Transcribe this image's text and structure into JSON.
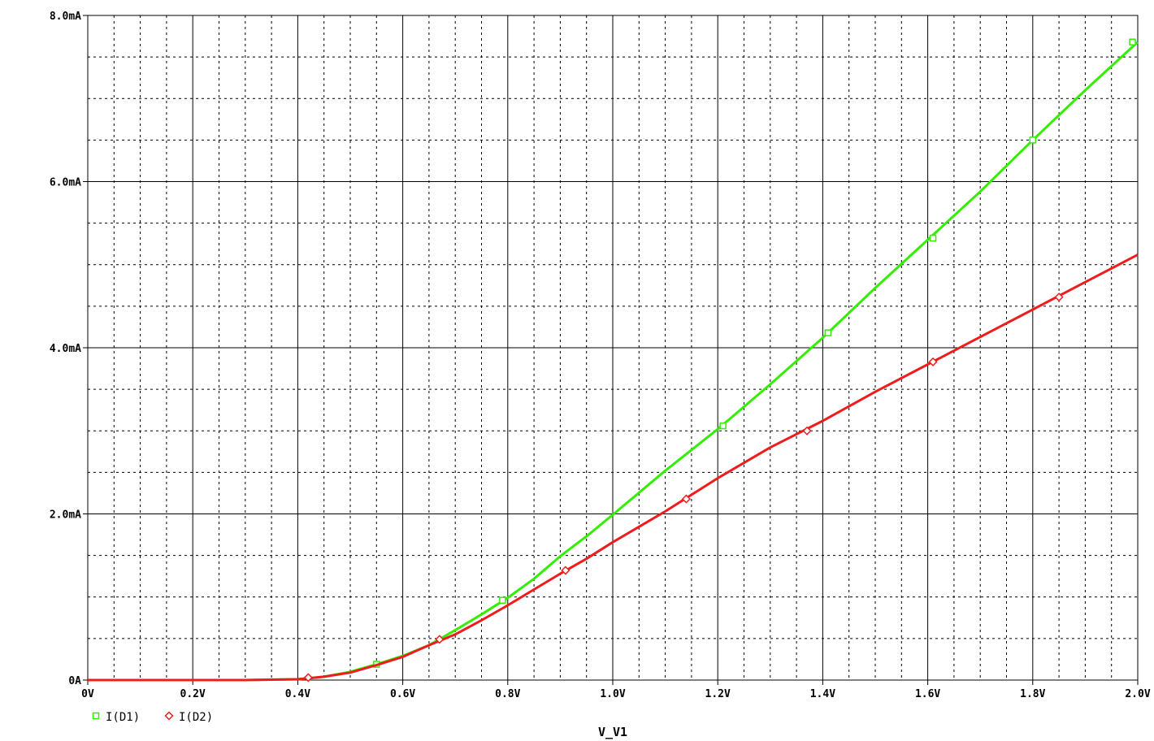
{
  "chart_data": {
    "type": "line",
    "xlabel": "V_V1",
    "ylabel": "",
    "xlim": [
      0,
      2.0
    ],
    "ylim": [
      0,
      8.0
    ],
    "x_unit": "V",
    "y_unit": "mA",
    "x_ticks": [
      {
        "value": 0,
        "label": "0V"
      },
      {
        "value": 0.2,
        "label": "0.2V"
      },
      {
        "value": 0.4,
        "label": "0.4V"
      },
      {
        "value": 0.6,
        "label": "0.6V"
      },
      {
        "value": 0.8,
        "label": "0.8V"
      },
      {
        "value": 1.0,
        "label": "1.0V"
      },
      {
        "value": 1.2,
        "label": "1.2V"
      },
      {
        "value": 1.4,
        "label": "1.4V"
      },
      {
        "value": 1.6,
        "label": "1.6V"
      },
      {
        "value": 1.8,
        "label": "1.8V"
      },
      {
        "value": 2.0,
        "label": "2.0V"
      }
    ],
    "y_ticks": [
      {
        "value": 0,
        "label": "0A"
      },
      {
        "value": 2.0,
        "label": "2.0mA"
      },
      {
        "value": 4.0,
        "label": "4.0mA"
      },
      {
        "value": 6.0,
        "label": "6.0mA"
      },
      {
        "value": 8.0,
        "label": "8.0mA"
      }
    ],
    "grid": true,
    "legend_position": "bottom-left",
    "series": [
      {
        "name": "I(D1)",
        "color": "#33ee00",
        "marker": "square",
        "x": [
          0,
          0.1,
          0.2,
          0.3,
          0.4,
          0.45,
          0.5,
          0.55,
          0.6,
          0.65,
          0.7,
          0.75,
          0.8,
          0.85,
          0.9,
          0.95,
          1.0,
          1.1,
          1.2,
          1.3,
          1.4,
          1.5,
          1.6,
          1.7,
          1.8,
          1.9,
          2.0
        ],
        "y": [
          0,
          0,
          0,
          0,
          0.01,
          0.04,
          0.1,
          0.19,
          0.29,
          0.42,
          0.6,
          0.79,
          0.99,
          1.22,
          1.49,
          1.73,
          1.99,
          2.52,
          3.02,
          3.56,
          4.12,
          4.72,
          5.3,
          5.88,
          6.5,
          7.1,
          7.68
        ],
        "marker_points": [
          [
            0.55,
            0.19
          ],
          [
            0.79,
            0.96
          ],
          [
            1.21,
            3.06
          ],
          [
            1.41,
            4.18
          ],
          [
            1.61,
            5.32
          ],
          [
            1.8,
            6.5
          ],
          [
            1.99,
            7.68
          ]
        ]
      },
      {
        "name": "I(D2)",
        "color": "#ee1c1c",
        "marker": "diamond",
        "x": [
          0,
          0.1,
          0.2,
          0.3,
          0.4,
          0.45,
          0.5,
          0.55,
          0.6,
          0.65,
          0.7,
          0.75,
          0.8,
          0.85,
          0.9,
          0.95,
          1.0,
          1.1,
          1.2,
          1.3,
          1.4,
          1.5,
          1.6,
          1.7,
          1.8,
          1.9,
          2.0
        ],
        "y": [
          0,
          0,
          0,
          0,
          0.01,
          0.04,
          0.09,
          0.18,
          0.28,
          0.42,
          0.55,
          0.72,
          0.9,
          1.09,
          1.28,
          1.46,
          1.66,
          2.03,
          2.43,
          2.8,
          3.12,
          3.47,
          3.8,
          4.13,
          4.46,
          4.79,
          5.12
        ],
        "marker_points": [
          [
            0.42,
            0.03
          ],
          [
            0.67,
            0.49
          ],
          [
            0.91,
            1.32
          ],
          [
            1.14,
            2.18
          ],
          [
            1.37,
            3.0
          ],
          [
            1.61,
            3.83
          ],
          [
            1.85,
            4.61
          ]
        ]
      }
    ]
  }
}
